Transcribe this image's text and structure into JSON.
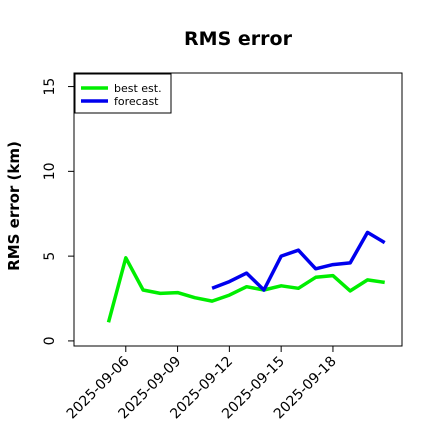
{
  "chart_data": {
    "type": "line",
    "title": "RMS error",
    "xlabel": "",
    "ylabel": "RMS error (km)",
    "ylim": [
      -0.3,
      15.8
    ],
    "xlim": [
      "2025-09-03",
      "2025-09-22"
    ],
    "y_ticks": [
      0,
      5,
      10,
      15
    ],
    "y_tick_labels": [
      "0",
      "5",
      "10",
      "15"
    ],
    "x_ticks": [
      "2025-09-06",
      "2025-09-09",
      "2025-09-12",
      "2025-09-15",
      "2025-09-18"
    ],
    "x_tick_labels": [
      "2025-09-06",
      "2025-09-09",
      "2025-09-12",
      "2025-09-15",
      "2025-09-18"
    ],
    "grid": false,
    "legend_position": "upper left",
    "series": [
      {
        "name": "best est.",
        "color": "#00ee00",
        "x": [
          "2025-09-05",
          "2025-09-06",
          "2025-09-07",
          "2025-09-08",
          "2025-09-09",
          "2025-09-10",
          "2025-09-11",
          "2025-09-12",
          "2025-09-13",
          "2025-09-14",
          "2025-09-15",
          "2025-09-16",
          "2025-09-17",
          "2025-09-18",
          "2025-09-19",
          "2025-09-20",
          "2025-09-21"
        ],
        "y": [
          1.1,
          4.9,
          3.0,
          2.8,
          2.85,
          2.55,
          2.35,
          2.7,
          3.2,
          3.0,
          3.25,
          3.1,
          3.75,
          3.85,
          2.95,
          3.6,
          3.45
        ]
      },
      {
        "name": "forecast",
        "color": "#0000ee",
        "x": [
          "2025-09-11",
          "2025-09-12",
          "2025-09-13",
          "2025-09-14",
          "2025-09-15",
          "2025-09-16",
          "2025-09-17",
          "2025-09-18",
          "2025-09-19",
          "2025-09-20",
          "2025-09-21"
        ],
        "y": [
          3.1,
          3.5,
          4.0,
          3.0,
          5.0,
          5.35,
          4.25,
          4.5,
          4.6,
          6.4,
          5.8
        ]
      }
    ]
  }
}
